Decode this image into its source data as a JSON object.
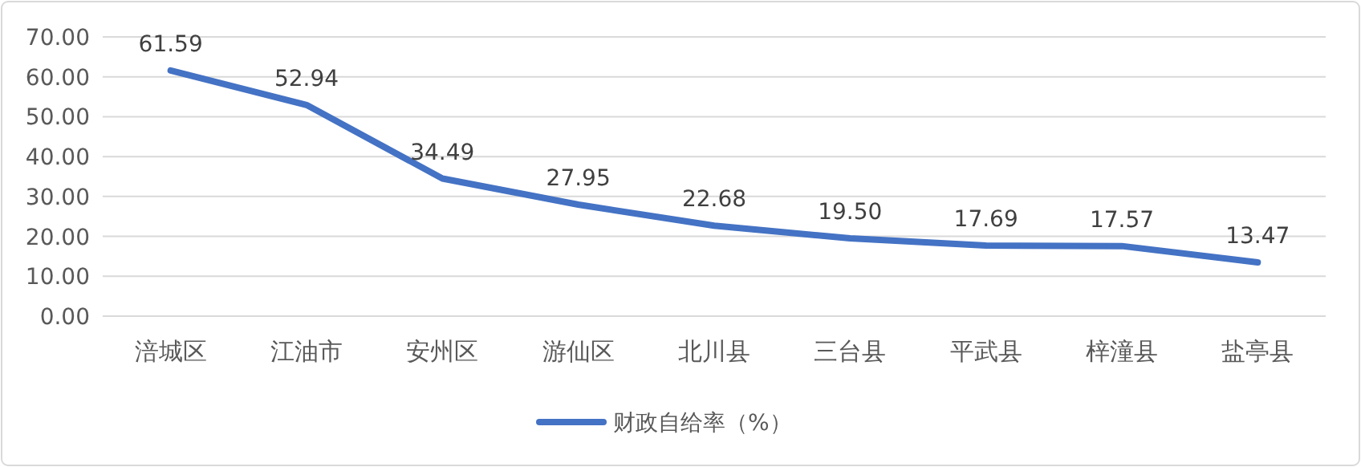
{
  "chart_data": {
    "type": "line",
    "categories": [
      "涪城区",
      "江油市",
      "安州区",
      "游仙区",
      "北川县",
      "三台县",
      "平武县",
      "梓潼县",
      "盐亭县"
    ],
    "series": [
      {
        "name": "财政自给率（%）",
        "color": "#4472c4",
        "values": [
          61.59,
          52.94,
          34.49,
          27.95,
          22.68,
          19.5,
          17.69,
          17.57,
          13.47
        ],
        "value_labels": [
          "61.59",
          "52.94",
          "34.49",
          "27.95",
          "22.68",
          "19.50",
          "17.69",
          "17.57",
          "13.47"
        ]
      }
    ],
    "ylim": [
      0,
      70
    ],
    "yticks": [
      {
        "value": 0,
        "label": "0.00"
      },
      {
        "value": 10,
        "label": "10.00"
      },
      {
        "value": 20,
        "label": "20.00"
      },
      {
        "value": 30,
        "label": "30.00"
      },
      {
        "value": 40,
        "label": "40.00"
      },
      {
        "value": 50,
        "label": "50.00"
      },
      {
        "value": 60,
        "label": "60.00"
      },
      {
        "value": 70,
        "label": "70.00"
      }
    ],
    "grid": "y",
    "legend": "bottom",
    "marker": "none",
    "line_style": "solid"
  }
}
